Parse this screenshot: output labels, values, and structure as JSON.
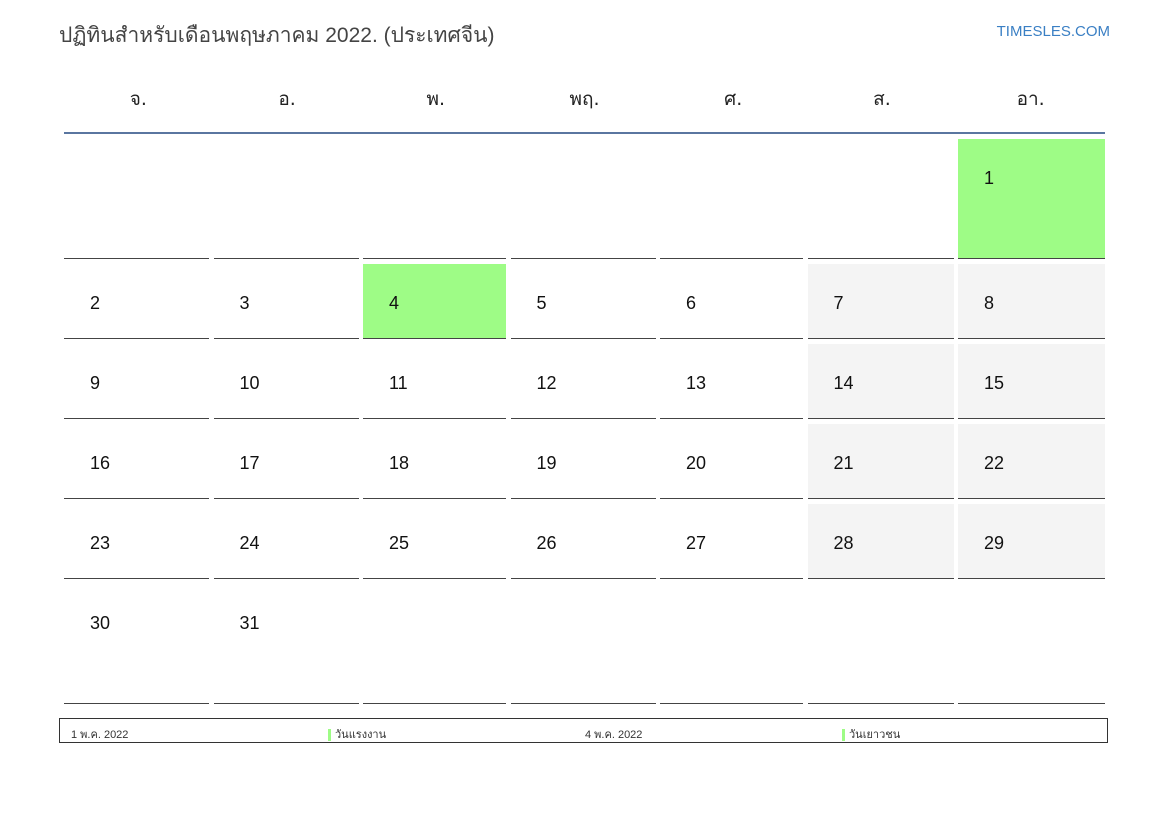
{
  "title": "ปฏิทินสำหรับเดือนพฤษภาคม 2022. (ประเทศจีน)",
  "brand": "TIMESLES.COM",
  "weekdays": [
    "จ.",
    "อ.",
    "พ.",
    "พฤ.",
    "ศ.",
    "ส.",
    "อา."
  ],
  "colors": {
    "holiday": "#9efc86",
    "weekend": "#f4f4f4",
    "header_line": "#5a76a0",
    "brand": "#3a7fc4"
  },
  "weeks": [
    [
      null,
      null,
      null,
      null,
      null,
      null,
      1
    ],
    [
      2,
      3,
      4,
      5,
      6,
      7,
      8
    ],
    [
      9,
      10,
      11,
      12,
      13,
      14,
      15
    ],
    [
      16,
      17,
      18,
      19,
      20,
      21,
      22
    ],
    [
      23,
      24,
      25,
      26,
      27,
      28,
      29
    ],
    [
      30,
      31,
      null,
      null,
      null,
      null,
      null
    ]
  ],
  "holidays": [
    1,
    4
  ],
  "legend": [
    {
      "date": "1 พ.ค. 2022",
      "name": "วันแรงงาน"
    },
    {
      "date": "4 พ.ค. 2022",
      "name": "วันเยาวชน"
    }
  ]
}
